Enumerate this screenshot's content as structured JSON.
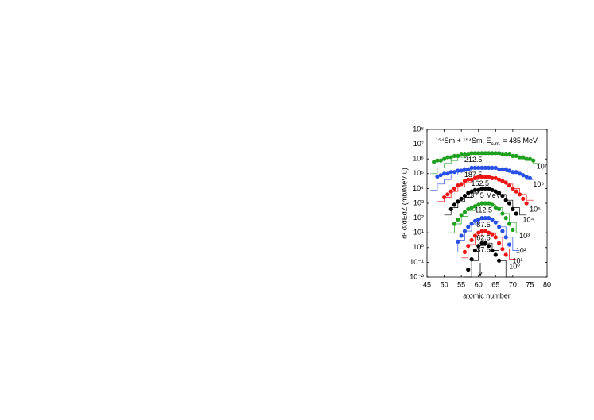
{
  "chart_data": {
    "type": "scatter",
    "annotation": {
      "pre": "¹⁵⁴Sm + ¹⁵⁴Sm, E",
      "sub": "c.m.",
      "post": " = 485 MeV"
    },
    "xlabel": "atomic number",
    "ylabel": "d² σ/dEdZ (mb/MeV u)",
    "xlim": [
      45,
      80
    ],
    "xticks": [
      45,
      50,
      55,
      60,
      65,
      70,
      75,
      80
    ],
    "yscale": "log",
    "ylim": [
      0.01,
      100000000
    ],
    "yticks": [
      {
        "value": 0.01,
        "label": "10⁻²"
      },
      {
        "value": 0.1,
        "label": "10⁻¹"
      },
      {
        "value": 1,
        "label": "10⁰"
      },
      {
        "value": 10,
        "label": "10¹"
      },
      {
        "value": 100,
        "label": "10²"
      },
      {
        "value": 1000,
        "label": "10³"
      },
      {
        "value": 10000,
        "label": "10⁴"
      },
      {
        "value": 100000,
        "label": "10⁵"
      },
      {
        "value": 1000000,
        "label": "10⁶"
      },
      {
        "value": 10000000,
        "label": "10⁷"
      },
      {
        "value": 100000000,
        "label": "10⁸"
      }
    ],
    "grid": false,
    "series": [
      {
        "name": "212.5",
        "color": "#1fa01f",
        "scale": "10⁷",
        "x": [
          47,
          48,
          49,
          50,
          51,
          52,
          53,
          54,
          55,
          56,
          57,
          58,
          59,
          60,
          61,
          62,
          63,
          64,
          65,
          66,
          67,
          68,
          69,
          70,
          71,
          72,
          73,
          74,
          75,
          76
        ],
        "values": [
          630000.0,
          790000.0,
          790000.0,
          1000000.0,
          1300000.0,
          1300000.0,
          1600000.0,
          1600000.0,
          2000000.0,
          2000000.0,
          2000000.0,
          2500000.0,
          2500000.0,
          2500000.0,
          2500000.0,
          2500000.0,
          2500000.0,
          2500000.0,
          2500000.0,
          2500000.0,
          2000000.0,
          2000000.0,
          2000000.0,
          1600000.0,
          1600000.0,
          1300000.0,
          1300000.0,
          1000000.0,
          1000000.0,
          790000.0
        ],
        "calc": {
          "x": [
            46,
            48,
            50,
            52,
            54,
            56,
            58,
            60,
            62,
            64,
            66,
            68,
            70,
            72,
            74,
            76
          ],
          "values": [
            100000.0,
            250000.0,
            500000.0,
            790000.0,
            1300000.0,
            1600000.0,
            2000000.0,
            2000000.0,
            2000000.0,
            2000000.0,
            2000000.0,
            1600000.0,
            1300000.0,
            1000000.0,
            790000.0,
            500000.0
          ]
        }
      },
      {
        "name": "187.5",
        "color": "#2850e8",
        "scale": "10⁶",
        "x": [
          48,
          49,
          50,
          51,
          52,
          53,
          54,
          55,
          56,
          57,
          58,
          59,
          60,
          61,
          62,
          63,
          64,
          65,
          66,
          67,
          68,
          69,
          70,
          71,
          72,
          73,
          74,
          75
        ],
        "values": [
          63000.0,
          79000.0,
          100000.0,
          100000.0,
          130000.0,
          130000.0,
          160000.0,
          160000.0,
          200000.0,
          200000.0,
          250000.0,
          250000.0,
          250000.0,
          250000.0,
          250000.0,
          250000.0,
          250000.0,
          250000.0,
          200000.0,
          200000.0,
          200000.0,
          160000.0,
          130000.0,
          130000.0,
          100000.0,
          79000.0,
          63000.0,
          50000.0
        ],
        "calc": {
          "x": [
            46,
            48,
            50,
            52,
            54,
            56,
            58,
            60,
            62,
            64,
            66,
            68,
            70,
            72,
            74
          ],
          "values": [
            7900,
            20000.0,
            40000.0,
            79000.0,
            130000.0,
            160000.0,
            200000.0,
            200000.0,
            200000.0,
            200000.0,
            160000.0,
            130000.0,
            100000.0,
            79000.0,
            40000.0
          ]
        }
      },
      {
        "name": "162.5",
        "color": "#ee1515",
        "scale": "10⁵",
        "x": [
          50,
          51,
          52,
          53,
          54,
          55,
          56,
          57,
          58,
          59,
          60,
          61,
          62,
          63,
          64,
          65,
          66,
          67,
          68,
          69,
          70,
          71,
          72,
          73,
          74
        ],
        "values": [
          2500,
          4000,
          6300,
          10000.0,
          16000.0,
          20000.0,
          32000.0,
          40000.0,
          40000.0,
          50000.0,
          63000.0,
          63000.0,
          63000.0,
          63000.0,
          50000.0,
          50000.0,
          40000.0,
          32000.0,
          25000.0,
          16000.0,
          10000.0,
          6300,
          4000,
          2000,
          1000
        ],
        "calc": {
          "x": [
            48,
            50,
            52,
            54,
            56,
            58,
            60,
            62,
            64,
            66,
            68,
            70,
            72,
            74
          ],
          "values": [
            1300,
            2500,
            6300,
            13000.0,
            25000.0,
            40000.0,
            50000.0,
            50000.0,
            50000.0,
            32000.0,
            20000.0,
            10000.0,
            4000,
            1600
          ]
        }
      },
      {
        "name": "137.5 MeV",
        "color": "#000000",
        "scale": "10⁴",
        "x": [
          52,
          53,
          54,
          55,
          56,
          57,
          58,
          59,
          60,
          61,
          62,
          63,
          64,
          65,
          66,
          67,
          68,
          69,
          70,
          71
        ],
        "values": [
          400,
          790,
          1300,
          2000,
          3200,
          5000,
          6300,
          7900,
          7900,
          10000.0,
          10000.0,
          10000.0,
          7900,
          6300,
          5000,
          3200,
          1600,
          1000,
          400,
          200
        ],
        "calc": {
          "x": [
            50,
            52,
            54,
            56,
            58,
            60,
            62,
            64,
            66,
            68,
            70,
            72
          ],
          "values": [
            160,
            500,
            1300,
            2500,
            5000,
            7900,
            7900,
            6300,
            4000,
            1600,
            500,
            160
          ]
        }
      },
      {
        "name": "112.5",
        "color": "#1fa01f",
        "scale": "10³",
        "x": [
          53,
          54,
          55,
          56,
          57,
          58,
          59,
          60,
          61,
          62,
          63,
          64,
          65,
          66,
          67,
          68,
          69,
          70
        ],
        "values": [
          40,
          79,
          160,
          250,
          400,
          500,
          630,
          790,
          1000,
          1000,
          1000,
          790,
          500,
          400,
          200,
          100,
          40,
          16
        ],
        "calc": {
          "x": [
            51,
            53,
            55,
            57,
            59,
            61,
            63,
            65,
            67,
            69,
            71
          ],
          "values": [
            10,
            40,
            130,
            320,
            630,
            790,
            790,
            500,
            200,
            50,
            10
          ]
        }
      },
      {
        "name": "87.5",
        "color": "#2850e8",
        "scale": "10²",
        "x": [
          54,
          55,
          56,
          57,
          58,
          59,
          60,
          61,
          62,
          63,
          64,
          65,
          66,
          67,
          68,
          69
        ],
        "values": [
          2.5,
          6.3,
          13,
          25,
          40,
          63,
          79,
          100,
          100,
          100,
          79,
          50,
          25,
          13,
          5,
          1.6
        ],
        "calc": {
          "x": [
            52,
            54,
            56,
            58,
            60,
            62,
            64,
            66,
            68,
            70
          ],
          "values": [
            0.5,
            3.2,
            13,
            40,
            79,
            79,
            63,
            25,
            5,
            0.63
          ]
        }
      },
      {
        "name": "62.5",
        "color": "#ee1515",
        "scale": "10¹",
        "x": [
          56,
          57,
          58,
          59,
          60,
          61,
          62,
          63,
          64,
          65,
          66,
          67,
          68
        ],
        "values": [
          0.5,
          1.3,
          3.2,
          6.3,
          10,
          13,
          13,
          10,
          7.9,
          5,
          2,
          0.79,
          0.32
        ],
        "calc": {
          "x": [
            55,
            57,
            59,
            61,
            63,
            65,
            67,
            69
          ],
          "values": [
            0.2,
            1.6,
            6.3,
            13,
            10,
            5,
            0.79,
            0.16
          ]
        }
      },
      {
        "name": "37.5",
        "color": "#000000",
        "scale": "10⁰",
        "x": [
          57,
          58,
          59,
          60,
          61,
          62,
          63,
          64,
          65,
          66
        ],
        "values": [
          0.032,
          0.16,
          0.63,
          1.3,
          2,
          2,
          1.3,
          0.63,
          0.32,
          0.13
        ],
        "calc": {
          "x": [
            56,
            58,
            60,
            62,
            64,
            66,
            68
          ],
          "values": [
            0.01,
            0.13,
            1.3,
            2,
            0.63,
            0.13,
            0.01
          ]
        }
      }
    ]
  }
}
